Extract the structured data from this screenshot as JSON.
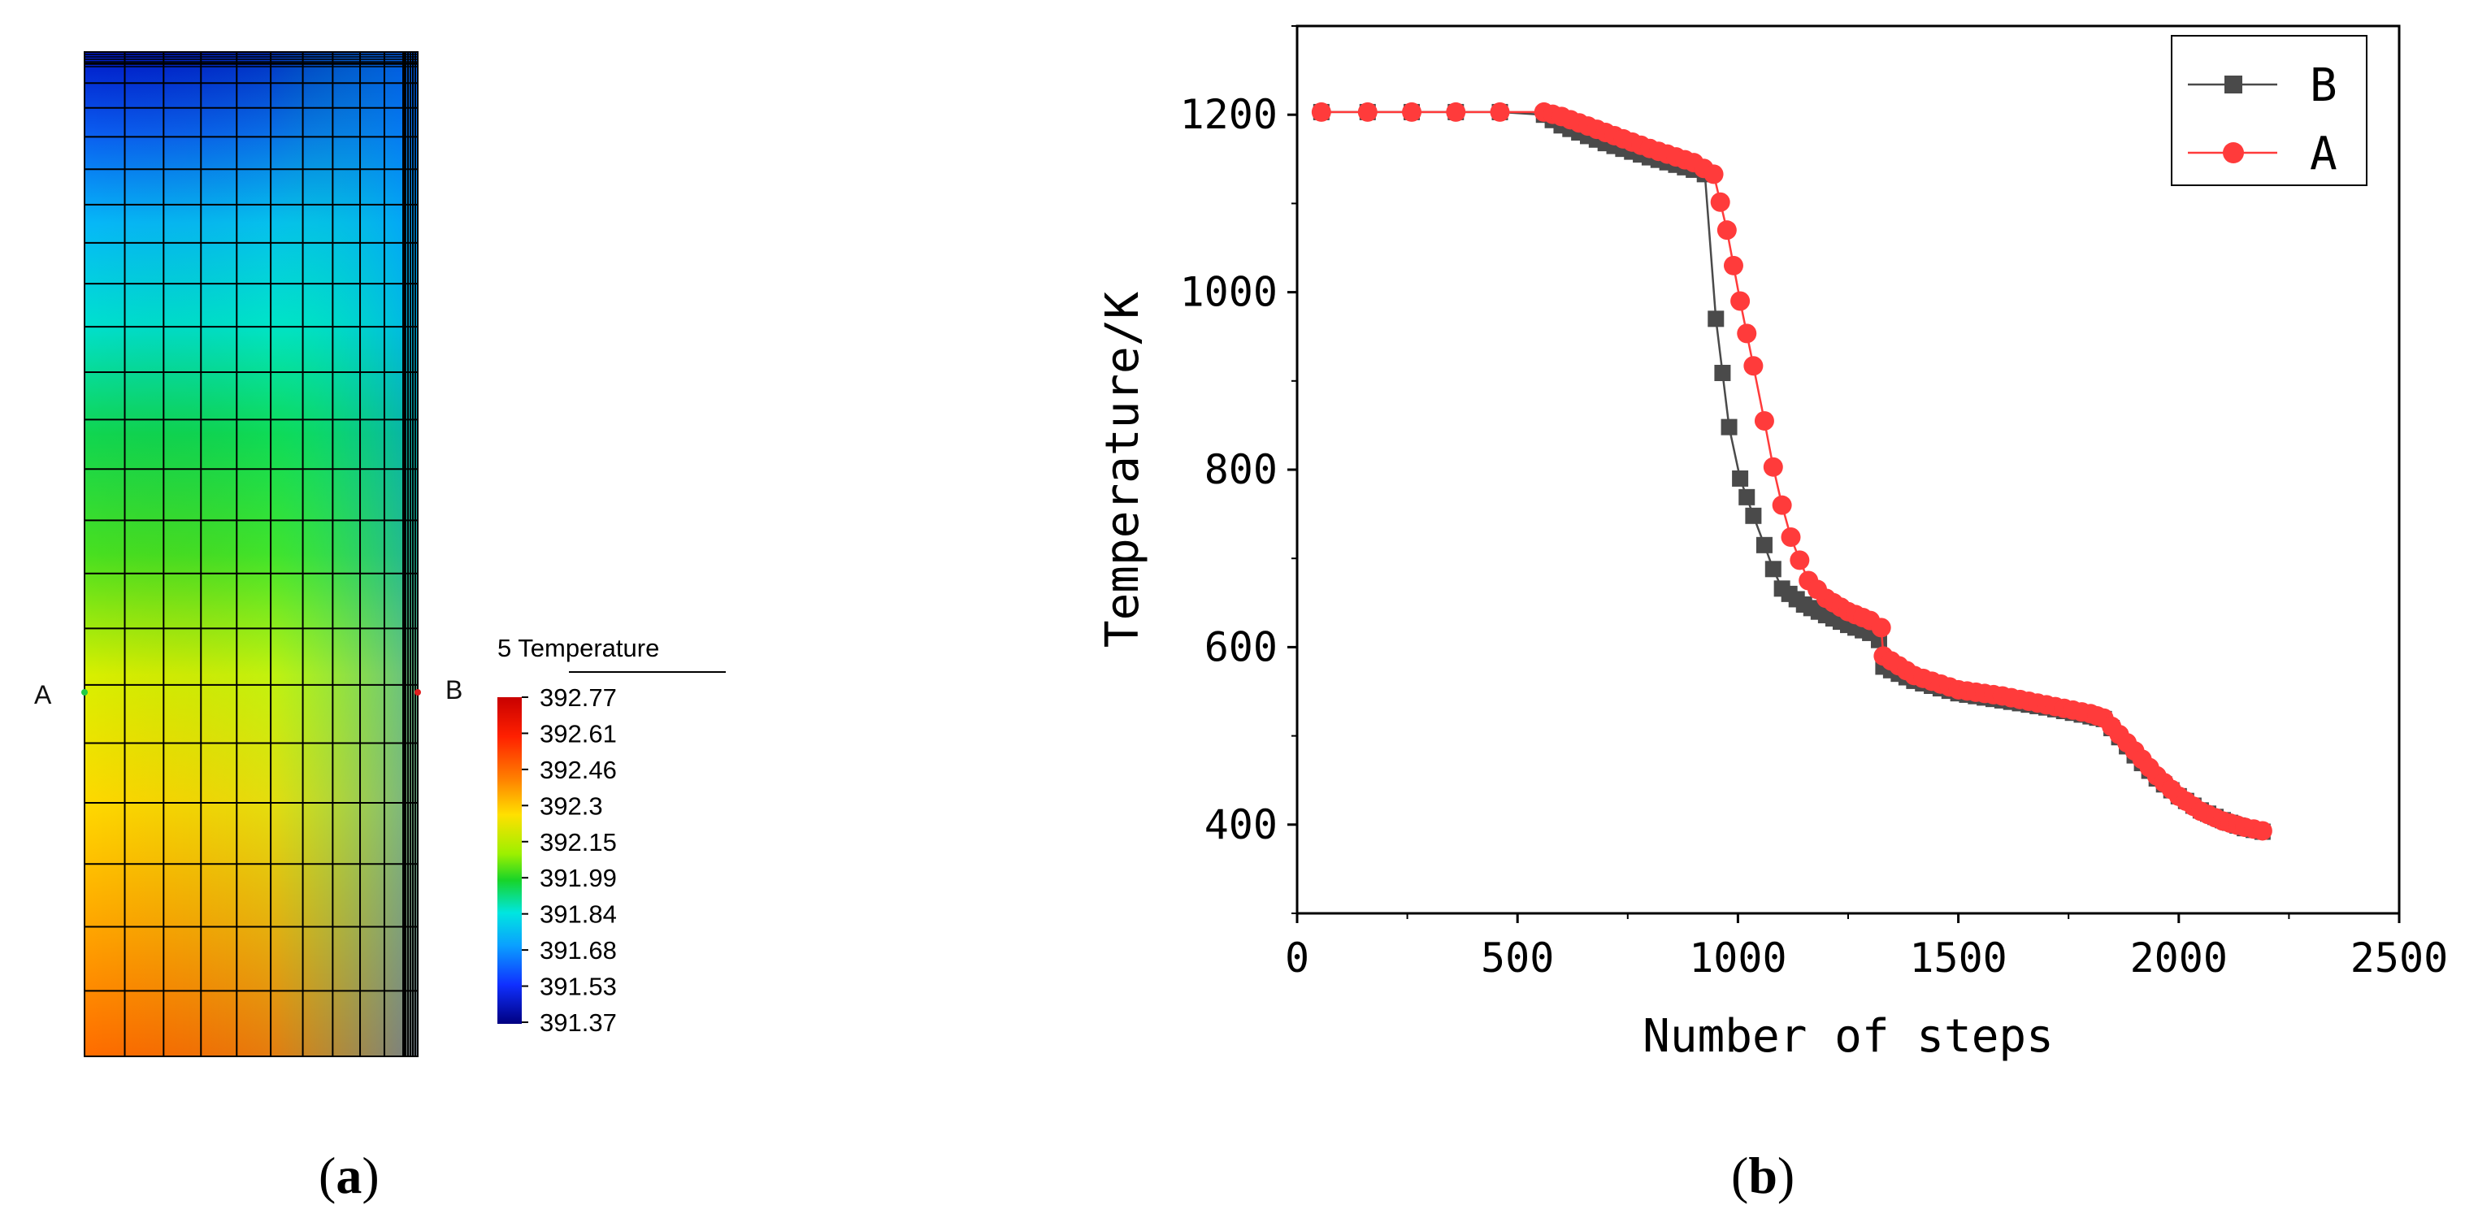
{
  "panel_a": {
    "caption_open": "(",
    "caption_letter": "a",
    "caption_close": ")",
    "point_a_label": "A",
    "point_b_label": "B",
    "legend_title": "5 Temperature",
    "legend_values": [
      "392.77",
      "392.61",
      "392.46",
      "392.3",
      "392.15",
      "391.99",
      "391.84",
      "391.68",
      "391.53",
      "391.37"
    ],
    "legend_colors": [
      "#e00000",
      "#ff3a00",
      "#ff8a00",
      "#ffd800",
      "#b8f000",
      "#25d625",
      "#00e8d8",
      "#0aa8ff",
      "#1640ff",
      "#000090"
    ]
  },
  "panel_b": {
    "caption_open": "(",
    "caption_letter": "b",
    "caption_close": ")"
  },
  "chart_data": [
    {
      "type": "heatmap",
      "title": "5 Temperature",
      "description_points": [
        "A",
        "B"
      ],
      "colorbar": {
        "min": 391.37,
        "max": 392.77,
        "ticks": [
          392.77,
          392.61,
          392.46,
          392.3,
          392.15,
          391.99,
          391.84,
          391.68,
          391.53,
          391.37
        ]
      },
      "grid_columns": 11,
      "grid_rows": 22
    },
    {
      "type": "line",
      "title": "",
      "xlabel": "Number of steps",
      "ylabel": "Temperature/K",
      "xlim": [
        0,
        2500
      ],
      "ylim": [
        300,
        1300
      ],
      "xticks": [
        0,
        500,
        1000,
        1500,
        2000,
        2500
      ],
      "yticks": [
        400,
        600,
        800,
        1000,
        1200
      ],
      "legend_position": "top-right",
      "series": [
        {
          "name": "B",
          "color": "#4a4a4a",
          "marker": "square",
          "x": [
            55,
            160,
            260,
            360,
            460,
            560,
            600,
            700,
            800,
            900,
            925,
            950,
            980,
            1005,
            1035,
            1060,
            1080,
            1100,
            1150,
            1200,
            1250,
            1300,
            1320,
            1330,
            1400,
            1500,
            1600,
            1700,
            1800,
            1830,
            1900,
            1950,
            2000,
            2050,
            2100,
            2150,
            2190
          ],
          "y": [
            1203,
            1203,
            1203,
            1203,
            1203,
            1200,
            1188,
            1168,
            1152,
            1138,
            1133,
            970,
            848,
            790,
            748,
            715,
            688,
            666,
            648,
            636,
            625,
            616,
            608,
            578,
            562,
            548,
            540,
            532,
            522,
            519,
            478,
            452,
            432,
            416,
            405,
            396,
            392
          ]
        },
        {
          "name": "A",
          "color": "#ff3b3b",
          "marker": "circle",
          "x": [
            55,
            160,
            260,
            360,
            460,
            560,
            600,
            700,
            800,
            900,
            945,
            975,
            1005,
            1035,
            1060,
            1080,
            1100,
            1120,
            1140,
            1160,
            1200,
            1250,
            1300,
            1325,
            1330,
            1400,
            1500,
            1600,
            1700,
            1800,
            1830,
            1900,
            1950,
            2000,
            2050,
            2100,
            2150,
            2190
          ],
          "y": [
            1203,
            1203,
            1203,
            1203,
            1203,
            1203,
            1198,
            1180,
            1162,
            1146,
            1133,
            1070,
            990,
            917,
            855,
            803,
            760,
            724,
            698,
            675,
            655,
            640,
            630,
            622,
            590,
            568,
            552,
            545,
            535,
            525,
            520,
            483,
            455,
            432,
            415,
            404,
            397,
            393
          ]
        }
      ]
    }
  ]
}
